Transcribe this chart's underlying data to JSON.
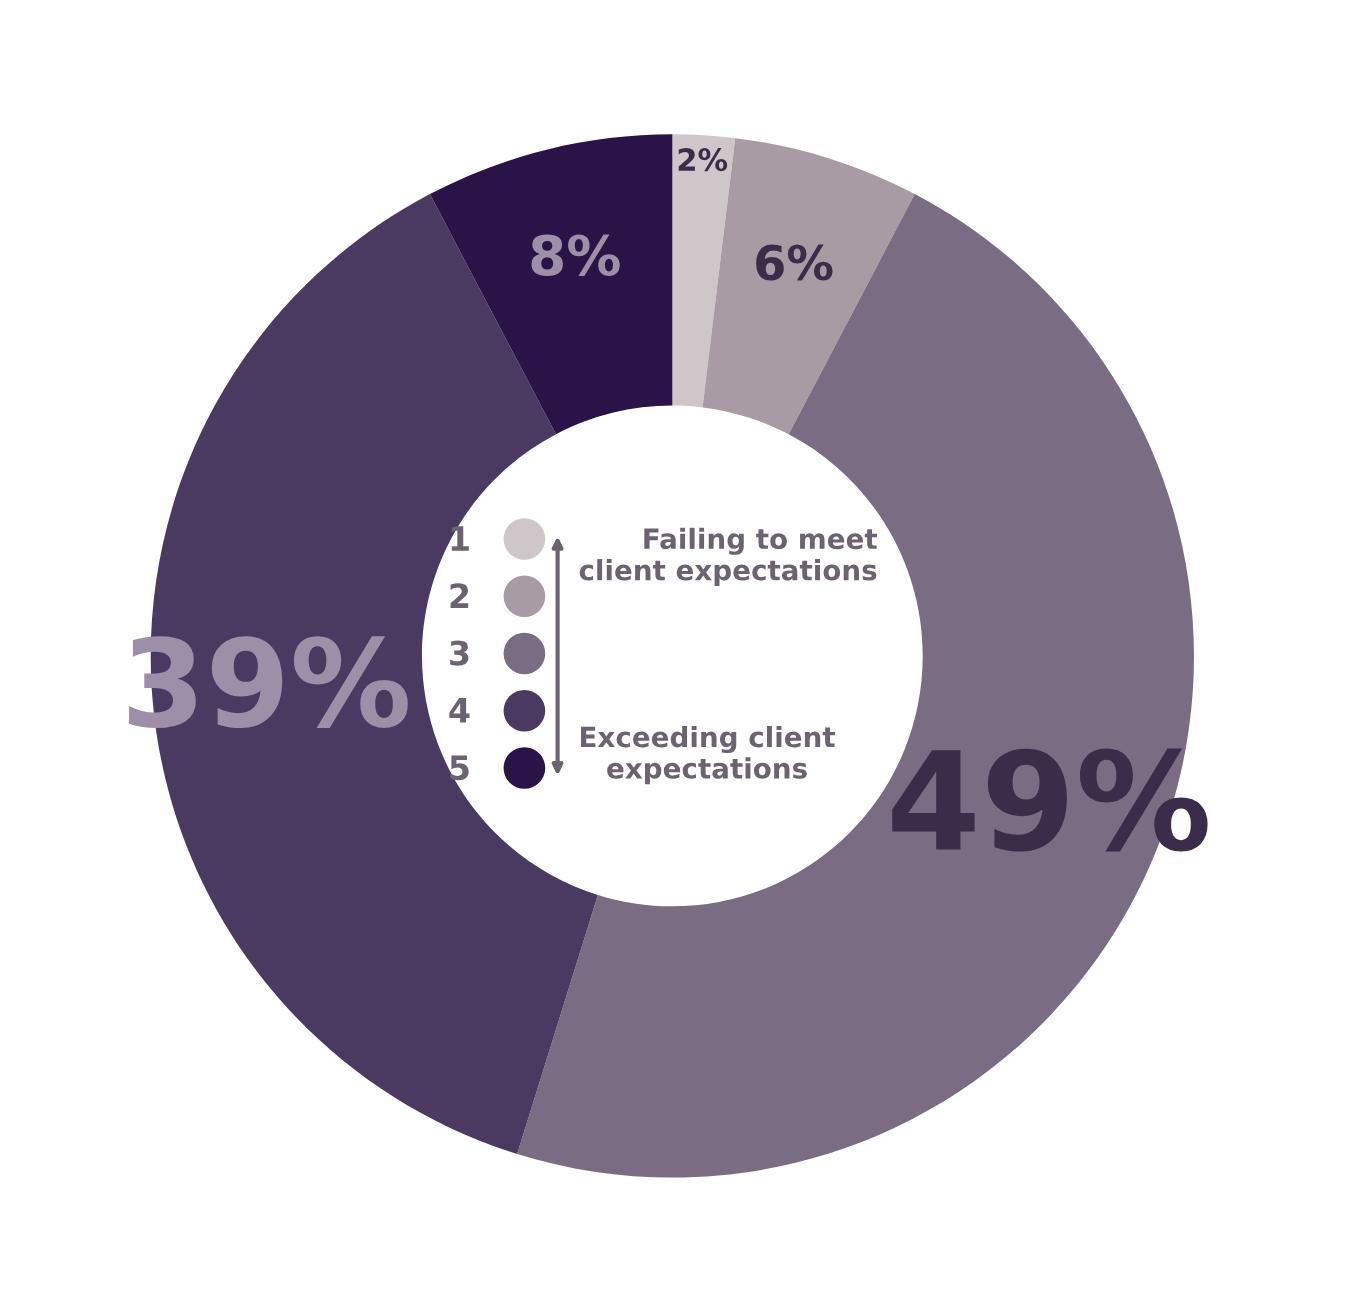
{
  "chart_data": {
    "type": "donut",
    "categories": [
      "1",
      "2",
      "3",
      "4",
      "5"
    ],
    "values": [
      2,
      6,
      49,
      39,
      8
    ],
    "colors": [
      "#cfc6c9",
      "#a89ba3",
      "#7a6c82",
      "#4a3a62",
      "#2a1447"
    ],
    "value_labels": [
      "2%",
      "6%",
      "49%",
      "39%",
      "8%"
    ],
    "legend": "center",
    "annotations": [
      "Failing to meet\nclient expectations",
      "Exceeding client\nexpectations"
    ]
  }
}
